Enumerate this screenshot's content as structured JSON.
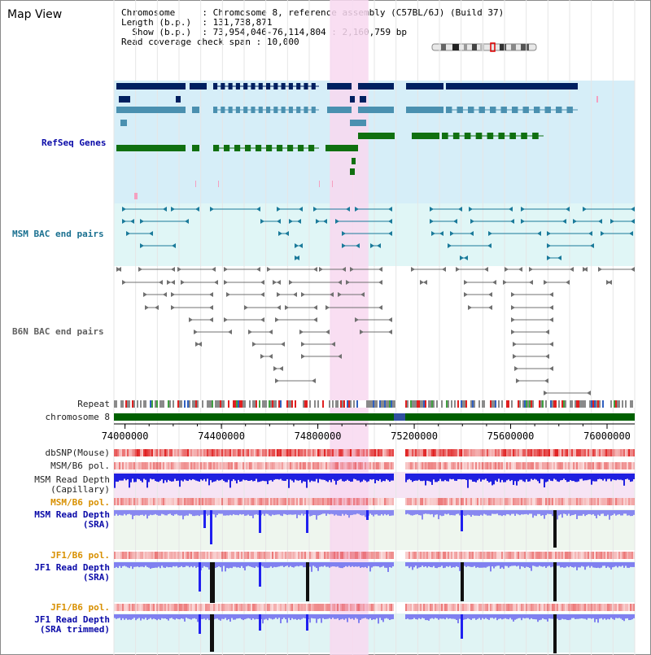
{
  "app": {
    "title": "Map View"
  },
  "info": {
    "chromosome_key": "Chromosome",
    "chromosome_val": "Chromosome 8, reference assembly (C57BL/6J) (Build 37)",
    "length_key": "Length (b.p.)",
    "length_val": "131,738,871",
    "show_key": "Show (b.p.)",
    "show_val": "73,954,046-76,114,804 : 2,160,759 bp",
    "span_key": "Read coverage check span",
    "span_val": "10,000"
  },
  "tracks": {
    "refseq": "RefSeq Genes",
    "msm_bac": "MSM BAC end pairs",
    "b6n_bac": "B6N BAC end pairs",
    "repeat": "Repeat",
    "chromosome": "chromosome 8",
    "dbsnp": "dbSNP(Mouse)",
    "msm_b6_pol": "MSM/B6 pol.",
    "msm_depth_cap_1": "MSM Read Depth",
    "msm_depth_cap_2": "(Capillary)",
    "msm_b6_pol2": "MSM/B6 pol.",
    "msm_depth_sra_1": "MSM Read Depth",
    "msm_depth_sra_2": "(SRA)",
    "jf1_b6_pol": "JF1/B6 pol.",
    "jf1_depth_sra_1": "JF1 Read Depth",
    "jf1_depth_sra_2": "(SRA)",
    "jf1_b6_pol2": "JF1/B6 pol.",
    "jf1_depth_trim_1": "JF1 Read Depth",
    "jf1_depth_trim_2": "(SRA trimmed)"
  },
  "axis": {
    "ticks": [
      "74000000",
      "74400000",
      "74800000",
      "75200000",
      "75600000",
      "76000000"
    ],
    "tick_values": [
      74000000,
      74400000,
      74800000,
      75200000,
      75600000,
      76000000
    ],
    "range": [
      73954046,
      76114804
    ]
  },
  "highlight": {
    "start": 74850000,
    "end": 75010000,
    "color": "#f8d8f0"
  },
  "colors": {
    "refseq_bg": "#d6eef8",
    "msm_bg": "#e0f6f6",
    "gene_navy": "#002060",
    "gene_steel": "#4a90b0",
    "gene_green": "#107010",
    "depth_blue": "#2020e0",
    "pol_red": "#e02020"
  }
}
